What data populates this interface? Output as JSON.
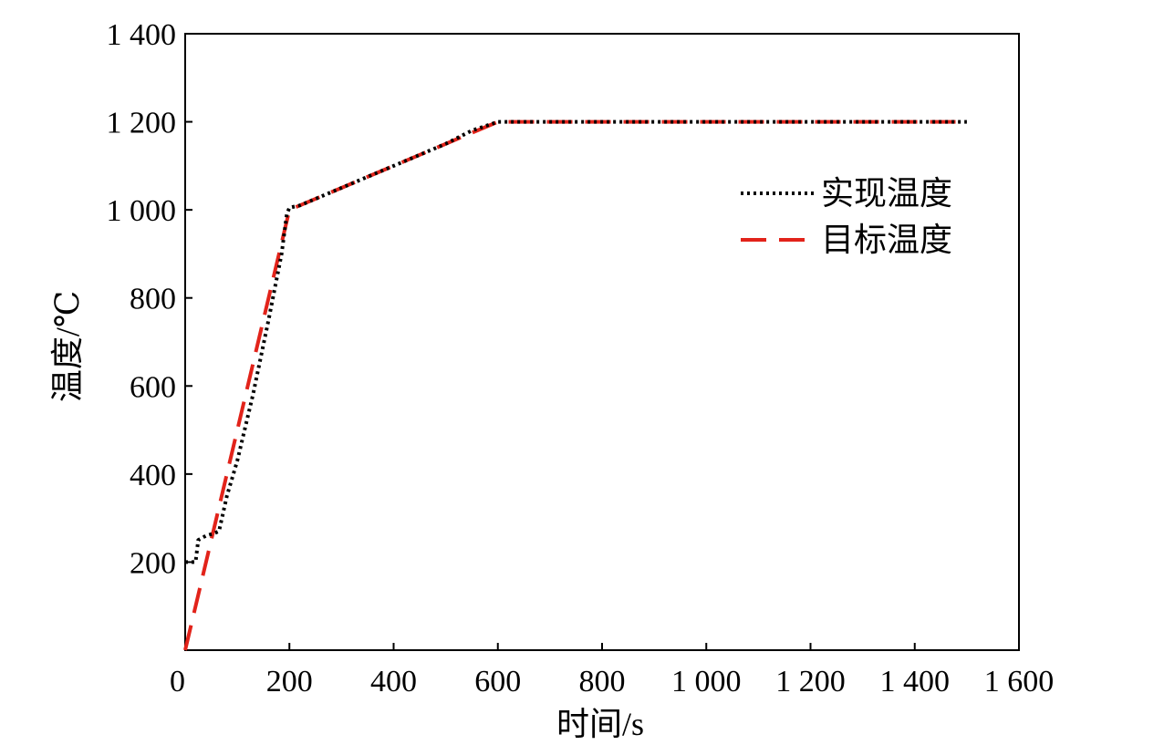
{
  "chart_data": {
    "type": "line",
    "title": "",
    "xlabel": "时间/s",
    "ylabel": "温度/℃",
    "xlim": [
      0,
      1600
    ],
    "ylim": [
      0,
      1400
    ],
    "xticks": [
      0,
      200,
      400,
      600,
      800,
      1000,
      1200,
      1400,
      1600
    ],
    "xtick_labels": [
      "0",
      "200",
      "400",
      "600",
      "800",
      "1 000",
      "1 200",
      "1 400",
      "1 600"
    ],
    "yticks": [
      200,
      400,
      600,
      800,
      1000,
      1200,
      1400
    ],
    "ytick_labels": [
      "200",
      "400",
      "600",
      "800",
      "1 000",
      "1 200",
      "1 400"
    ],
    "grid": false,
    "legend_position": "right",
    "series": [
      {
        "name": "实现温度",
        "style": "dotted",
        "color": "#000000",
        "points": [
          [
            0,
            200
          ],
          [
            20,
            200
          ],
          [
            25,
            250
          ],
          [
            40,
            260
          ],
          [
            55,
            265
          ],
          [
            65,
            270
          ],
          [
            80,
            350
          ],
          [
            100,
            430
          ],
          [
            130,
            580
          ],
          [
            160,
            750
          ],
          [
            185,
            900
          ],
          [
            195,
            990
          ],
          [
            200,
            1005
          ],
          [
            220,
            1010
          ],
          [
            250,
            1025
          ],
          [
            300,
            1050
          ],
          [
            350,
            1075
          ],
          [
            400,
            1100
          ],
          [
            450,
            1125
          ],
          [
            500,
            1150
          ],
          [
            550,
            1180
          ],
          [
            600,
            1200
          ],
          [
            700,
            1200
          ],
          [
            800,
            1200
          ],
          [
            900,
            1200
          ],
          [
            1000,
            1200
          ],
          [
            1100,
            1200
          ],
          [
            1200,
            1200
          ],
          [
            1300,
            1200
          ],
          [
            1400,
            1200
          ],
          [
            1500,
            1200
          ]
        ]
      },
      {
        "name": "目标温度",
        "style": "dashed",
        "color": "#e2231a",
        "points": [
          [
            0,
            0
          ],
          [
            200,
            1000
          ],
          [
            600,
            1200
          ],
          [
            1500,
            1200
          ]
        ]
      }
    ]
  }
}
